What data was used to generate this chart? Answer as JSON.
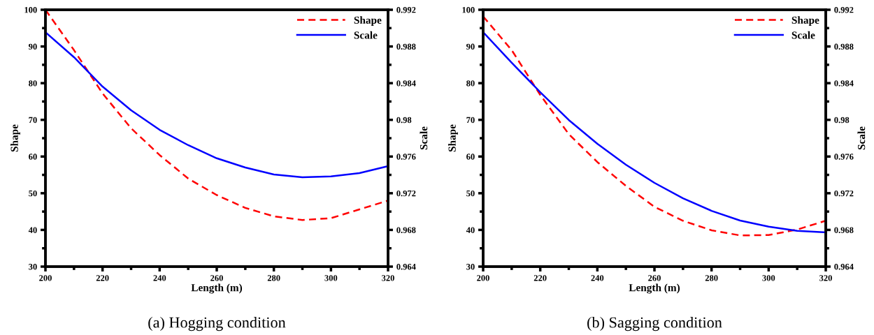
{
  "chart_data": [
    {
      "type": "line",
      "title": "(a) Hogging condition",
      "xlabel": "Length (m)",
      "ylabel": "Shape",
      "y2label": "Scale",
      "x": [
        200,
        210,
        220,
        230,
        240,
        250,
        260,
        270,
        280,
        290,
        300,
        310,
        320
      ],
      "series": [
        {
          "name": "Shape",
          "color": "#ff0000",
          "line_style": "dashed",
          "values": [
            100,
            89,
            77.2,
            67.7,
            60.4,
            54,
            49.5,
            46,
            43.7,
            42.7,
            43.2,
            45.6,
            48
          ]
        },
        {
          "name": "Scale",
          "color": "#0000ff",
          "line_style": "solid",
          "axis": "y2",
          "values": [
            0.98956,
            0.98683,
            0.98363,
            0.98104,
            0.97891,
            0.97724,
            0.97581,
            0.9748,
            0.97404,
            0.97374,
            0.97383,
            0.97419,
            0.97495
          ]
        }
      ],
      "xlim": [
        200,
        320
      ],
      "xticks": [
        200,
        {
          "value": 210,
          "label": null
        },
        220,
        {
          "value": 230,
          "label": null
        },
        240,
        {
          "value": 250,
          "label": null
        },
        260,
        {
          "value": 270,
          "label": null
        },
        280,
        {
          "value": 290,
          "label": null
        },
        300,
        {
          "value": 310,
          "label": null
        },
        320
      ],
      "ylim": [
        30,
        100
      ],
      "yticks": [
        30,
        {
          "value": 35,
          "label": null
        },
        40,
        {
          "value": 45,
          "label": null
        },
        50,
        {
          "value": 55,
          "label": null
        },
        60,
        {
          "value": 65,
          "label": null
        },
        70,
        {
          "value": 75,
          "label": null
        },
        80,
        {
          "value": 85,
          "label": null
        },
        90,
        {
          "value": 95,
          "label": null
        },
        100
      ],
      "y2lim": [
        0.964,
        0.992
      ],
      "y2ticks": [
        0.964,
        {
          "value": 0.966,
          "label": null
        },
        0.968,
        {
          "value": 0.97,
          "label": null
        },
        0.972,
        {
          "value": 0.974,
          "label": null
        },
        0.976,
        {
          "value": 0.978,
          "label": null
        },
        0.98,
        {
          "value": 0.982,
          "label": null
        },
        0.984,
        {
          "value": 0.986,
          "label": null
        },
        0.988,
        {
          "value": 0.99,
          "label": null
        },
        0.992
      ],
      "grid": false,
      "legend": "top right",
      "marker": "none"
    },
    {
      "type": "line",
      "title": "(b) Sagging condition",
      "xlabel": "Length (m)",
      "ylabel": "Shape",
      "y2label": "Scale",
      "x": [
        200,
        210,
        220,
        230,
        240,
        250,
        260,
        270,
        280,
        290,
        300,
        310,
        320
      ],
      "series": [
        {
          "name": "Shape",
          "color": "#ff0000",
          "line_style": "dashed",
          "values": [
            98.2,
            89,
            76.8,
            66.1,
            58.5,
            52,
            46.3,
            42.5,
            39.9,
            38.5,
            38.6,
            40.1,
            42.5
          ]
        },
        {
          "name": "Scale",
          "color": "#0000ff",
          "line_style": "solid",
          "axis": "y2",
          "values": [
            0.98956,
            0.98622,
            0.98302,
            0.97998,
            0.97739,
            0.97511,
            0.97313,
            0.97145,
            0.97008,
            0.96902,
            0.96835,
            0.9679,
            0.96774
          ]
        }
      ],
      "xlim": [
        200,
        320
      ],
      "xticks": [
        200,
        {
          "value": 210,
          "label": null
        },
        220,
        {
          "value": 230,
          "label": null
        },
        240,
        {
          "value": 250,
          "label": null
        },
        260,
        {
          "value": 270,
          "label": null
        },
        280,
        {
          "value": 290,
          "label": null
        },
        300,
        {
          "value": 310,
          "label": null
        },
        320
      ],
      "ylim": [
        30,
        100
      ],
      "yticks": [
        30,
        {
          "value": 35,
          "label": null
        },
        40,
        {
          "value": 45,
          "label": null
        },
        50,
        {
          "value": 55,
          "label": null
        },
        60,
        {
          "value": 65,
          "label": null
        },
        70,
        {
          "value": 75,
          "label": null
        },
        80,
        {
          "value": 85,
          "label": null
        },
        90,
        {
          "value": 95,
          "label": null
        },
        100
      ],
      "y2lim": [
        0.964,
        0.992
      ],
      "y2ticks": [
        0.964,
        {
          "value": 0.966,
          "label": null
        },
        0.968,
        {
          "value": 0.97,
          "label": null
        },
        0.972,
        {
          "value": 0.974,
          "label": null
        },
        0.976,
        {
          "value": 0.978,
          "label": null
        },
        0.98,
        {
          "value": 0.982,
          "label": null
        },
        0.984,
        {
          "value": 0.986,
          "label": null
        },
        0.988,
        {
          "value": 0.99,
          "label": null
        },
        0.992
      ],
      "grid": false,
      "legend": "top right",
      "marker": "none"
    }
  ]
}
